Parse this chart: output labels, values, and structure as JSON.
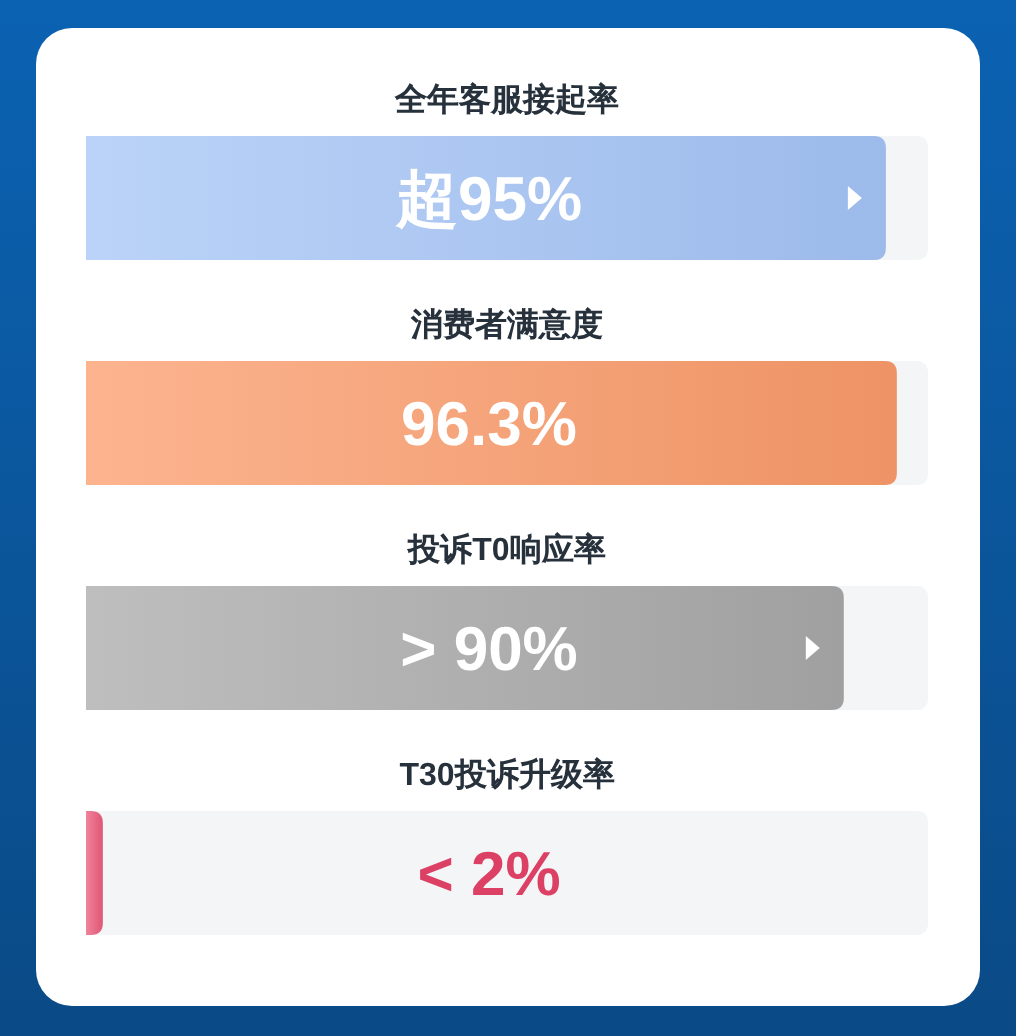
{
  "chart_data": {
    "type": "bar",
    "orientation": "horizontal",
    "categories": [
      "全年客服接起率",
      "消费者满意度",
      "投诉T0响应率",
      "T30投诉升级率"
    ],
    "values": [
      95,
      96.3,
      90,
      2
    ],
    "colors": [
      "#a4c4f6",
      "#fb9b6a",
      "#a8a8a8",
      "#eb5a7a"
    ],
    "value_labels": [
      "超95%",
      "96.3%",
      "> 90%",
      "< 2%"
    ],
    "xlim": [
      0,
      100
    ]
  }
}
